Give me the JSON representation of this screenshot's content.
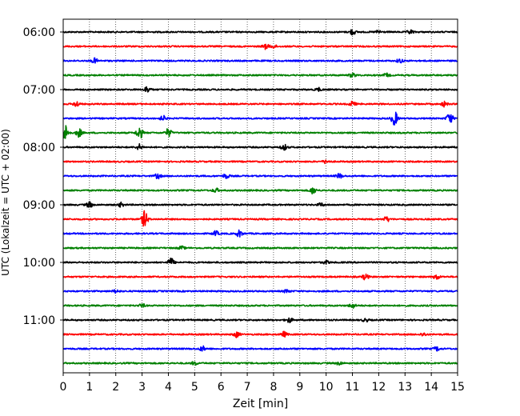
{
  "chart_data": {
    "type": "line",
    "title": "",
    "xlabel": "Zeit  [min]",
    "ylabel": "UTC (Lokalzeit = UTC + 02:00)",
    "xlim": [
      0,
      15
    ],
    "x_ticks": [
      "0",
      "1",
      "2",
      "3",
      "4",
      "5",
      "6",
      "7",
      "8",
      "9",
      "10",
      "11",
      "12",
      "13",
      "14",
      "15"
    ],
    "y_tick_labels": [
      "06:00",
      "07:00",
      "08:00",
      "09:00",
      "10:00",
      "11:00"
    ],
    "grid": "vertical dotted lines at each minute",
    "colors": [
      "#000000",
      "#ff0000",
      "#0000ff",
      "#008000"
    ],
    "traces": [
      {
        "start": "06:00",
        "color": "#000000",
        "events": [
          [
            11.0,
            0.35
          ],
          [
            12.0,
            0.2
          ],
          [
            13.2,
            0.25
          ]
        ]
      },
      {
        "start": "06:15",
        "color": "#ff0000",
        "events": [
          [
            7.7,
            0.3
          ],
          [
            8.0,
            0.2
          ]
        ]
      },
      {
        "start": "06:30",
        "color": "#0000ff",
        "events": [
          [
            1.2,
            0.3
          ],
          [
            12.8,
            0.25
          ]
        ]
      },
      {
        "start": "06:45",
        "color": "#008000",
        "events": [
          [
            11.0,
            0.25
          ],
          [
            12.3,
            0.2
          ]
        ]
      },
      {
        "start": "07:00",
        "color": "#000000",
        "events": [
          [
            3.2,
            0.4
          ],
          [
            9.7,
            0.2
          ]
        ]
      },
      {
        "start": "07:15",
        "color": "#ff0000",
        "events": [
          [
            0.5,
            0.35
          ],
          [
            11.0,
            0.3
          ],
          [
            14.5,
            0.3
          ]
        ]
      },
      {
        "start": "07:30",
        "color": "#0000ff",
        "events": [
          [
            3.8,
            0.3
          ],
          [
            12.6,
            0.9
          ],
          [
            14.7,
            0.7
          ]
        ]
      },
      {
        "start": "07:45",
        "color": "#008000",
        "events": [
          [
            0.1,
            1.0
          ],
          [
            0.6,
            0.5
          ],
          [
            2.9,
            0.8
          ],
          [
            4.0,
            0.5
          ]
        ]
      },
      {
        "start": "08:00",
        "color": "#000000",
        "events": [
          [
            2.9,
            0.35
          ],
          [
            8.4,
            0.35
          ]
        ]
      },
      {
        "start": "08:15",
        "color": "#ff0000",
        "events": [
          [
            10.0,
            0.2
          ]
        ]
      },
      {
        "start": "08:30",
        "color": "#0000ff",
        "events": [
          [
            3.6,
            0.3
          ],
          [
            6.2,
            0.3
          ],
          [
            10.5,
            0.3
          ]
        ]
      },
      {
        "start": "08:45",
        "color": "#008000",
        "events": [
          [
            5.8,
            0.25
          ],
          [
            9.5,
            0.4
          ]
        ]
      },
      {
        "start": "09:00",
        "color": "#000000",
        "events": [
          [
            1.0,
            0.35
          ],
          [
            2.2,
            0.25
          ],
          [
            9.8,
            0.2
          ]
        ]
      },
      {
        "start": "09:15",
        "color": "#ff0000",
        "events": [
          [
            3.1,
            1.0
          ],
          [
            12.3,
            0.3
          ]
        ]
      },
      {
        "start": "09:30",
        "color": "#0000ff",
        "events": [
          [
            5.8,
            0.3
          ],
          [
            6.7,
            0.4
          ]
        ]
      },
      {
        "start": "09:45",
        "color": "#008000",
        "events": [
          [
            4.5,
            0.2
          ]
        ]
      },
      {
        "start": "10:00",
        "color": "#000000",
        "events": [
          [
            4.1,
            0.5
          ],
          [
            10.0,
            0.2
          ]
        ]
      },
      {
        "start": "10:15",
        "color": "#ff0000",
        "events": [
          [
            11.5,
            0.35
          ],
          [
            14.2,
            0.3
          ]
        ]
      },
      {
        "start": "10:30",
        "color": "#0000ff",
        "events": [
          [
            2.0,
            0.2
          ],
          [
            8.5,
            0.2
          ]
        ]
      },
      {
        "start": "10:45",
        "color": "#008000",
        "events": [
          [
            3.0,
            0.2
          ],
          [
            11.0,
            0.3
          ]
        ]
      },
      {
        "start": "11:00",
        "color": "#000000",
        "events": [
          [
            8.6,
            0.3
          ],
          [
            11.5,
            0.2
          ]
        ]
      },
      {
        "start": "11:15",
        "color": "#ff0000",
        "events": [
          [
            6.6,
            0.35
          ],
          [
            8.4,
            0.3
          ],
          [
            13.7,
            0.2
          ]
        ]
      },
      {
        "start": "11:30",
        "color": "#0000ff",
        "events": [
          [
            5.3,
            0.3
          ],
          [
            14.2,
            0.25
          ]
        ]
      },
      {
        "start": "11:45",
        "color": "#008000",
        "events": [
          [
            5.0,
            0.2
          ],
          [
            10.5,
            0.2
          ]
        ]
      }
    ]
  }
}
